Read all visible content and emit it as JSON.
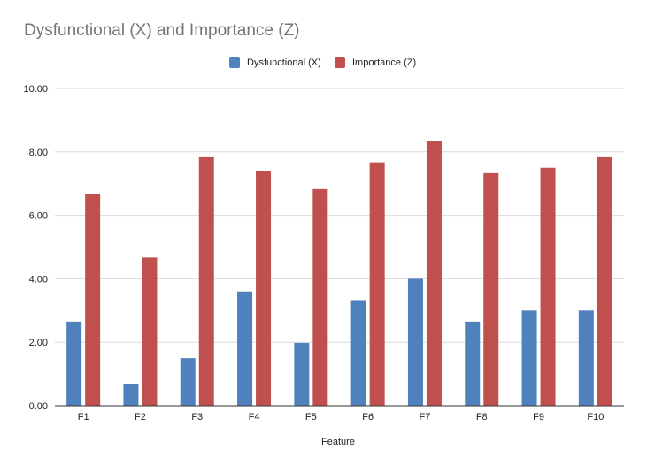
{
  "chart_data": {
    "type": "bar",
    "title": "Dysfunctional (X) and Importance (Z)",
    "xlabel": "Feature",
    "ylabel": "",
    "categories": [
      "F1",
      "F2",
      "F3",
      "F4",
      "F5",
      "F6",
      "F7",
      "F8",
      "F9",
      "F10"
    ],
    "series": [
      {
        "name": "Dysfunctional (X)",
        "color": "#4f81bd",
        "values": [
          2.65,
          0.67,
          1.5,
          3.6,
          1.98,
          3.33,
          4.0,
          2.65,
          3.0,
          3.0
        ]
      },
      {
        "name": "Importance (Z)",
        "color": "#c0504d",
        "values": [
          6.67,
          4.67,
          7.83,
          7.4,
          6.83,
          7.67,
          8.33,
          7.33,
          7.5,
          7.83
        ]
      }
    ],
    "ylim": [
      0,
      10
    ],
    "yticks": [
      "0.00",
      "2.00",
      "4.00",
      "6.00",
      "8.00",
      "10.00"
    ],
    "grid": true,
    "legend_position": "top-center"
  }
}
